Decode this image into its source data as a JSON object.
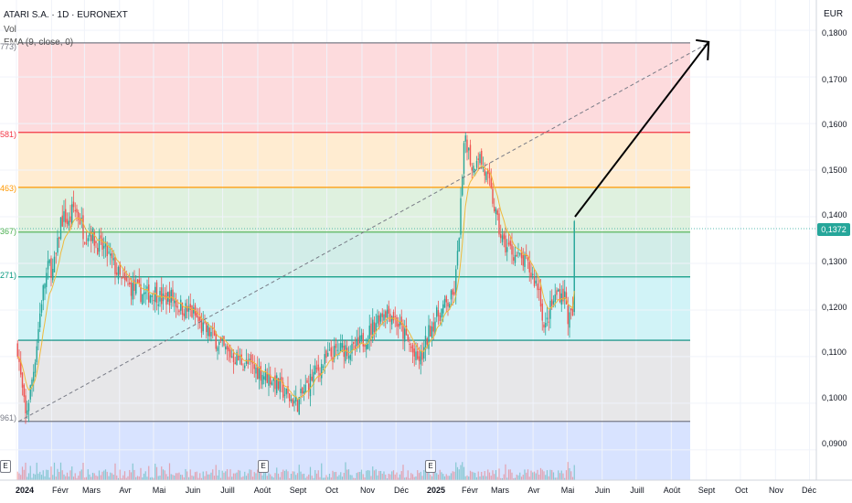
{
  "header": {
    "symbol": "ATARI S.A. · 1D · EURONEXT",
    "vol": "Vol",
    "ema": "EMA (9, close, 0)"
  },
  "axis": {
    "unit": "EUR",
    "last_price_label": "0,1372",
    "y_labels": [
      "0,1800",
      "0,1700",
      "0,1600",
      "0,1500",
      "0,1400",
      "0,1300",
      "0,1200",
      "0,1100",
      "0,1000",
      "0,0900"
    ],
    "x_labels": [
      "2024",
      "Févr",
      "Mars",
      "Avr",
      "Mai",
      "Juin",
      "Juill",
      "Août",
      "Sept",
      "Oct",
      "Nov",
      "Déc",
      "2025",
      "Févr",
      "Mars",
      "Avr",
      "Mai",
      "Juin",
      "Juill",
      "Août",
      "Sept",
      "Oct",
      "Nov",
      "Déc"
    ],
    "earnings_badge": "E"
  },
  "fib_labels": [
    "773)",
    "581)",
    "463)",
    "367)",
    "271)",
    "",
    "961)"
  ],
  "colors": {
    "up": "#26a69a",
    "down": "#ef5350",
    "ema": "#f0b93b",
    "accent": "#26a69a"
  },
  "chart_data": {
    "type": "candlestick",
    "title": "ATARI S.A. · 1D · EURONEXT",
    "ylabel": "EUR",
    "ylim": [
      0.0835,
      0.1865
    ],
    "last_price": 0.1372,
    "fib_levels": [
      0.1773,
      0.1581,
      0.1463,
      0.1367,
      0.1271,
      0.1135,
      0.0961
    ],
    "projection_arrow": {
      "from": [
        "2025-05-08",
        0.14
      ],
      "to": [
        "2025-09-03",
        0.1775
      ]
    },
    "trend_line": {
      "from": [
        "2024-01-03",
        0.0961
      ],
      "to": [
        "2025-09-03",
        0.1773
      ]
    },
    "price_path": [
      [
        "2024-01-02",
        0.112
      ],
      [
        "2024-01-05",
        0.105
      ],
      [
        "2024-01-09",
        0.097
      ],
      [
        "2024-01-12",
        0.101
      ],
      [
        "2024-01-16",
        0.107
      ],
      [
        "2024-01-19",
        0.113
      ],
      [
        "2024-01-23",
        0.122
      ],
      [
        "2024-01-26",
        0.126
      ],
      [
        "2024-01-30",
        0.13
      ],
      [
        "2024-02-02",
        0.128
      ],
      [
        "2024-02-06",
        0.133
      ],
      [
        "2024-02-09",
        0.139
      ],
      [
        "2024-02-13",
        0.14
      ],
      [
        "2024-02-16",
        0.138
      ],
      [
        "2024-02-20",
        0.142
      ],
      [
        "2024-02-23",
        0.141
      ],
      [
        "2024-02-27",
        0.139
      ],
      [
        "2024-03-01",
        0.136
      ],
      [
        "2024-03-06",
        0.137
      ],
      [
        "2024-03-12",
        0.134
      ],
      [
        "2024-03-19",
        0.133
      ],
      [
        "2024-03-26",
        0.13
      ],
      [
        "2024-04-03",
        0.126
      ],
      [
        "2024-04-10",
        0.125
      ],
      [
        "2024-04-17",
        0.124
      ],
      [
        "2024-04-24",
        0.123
      ],
      [
        "2024-05-02",
        0.124
      ],
      [
        "2024-05-09",
        0.122
      ],
      [
        "2024-05-16",
        0.123
      ],
      [
        "2024-05-23",
        0.121
      ],
      [
        "2024-05-30",
        0.12
      ],
      [
        "2024-06-06",
        0.119
      ],
      [
        "2024-06-13",
        0.116
      ],
      [
        "2024-06-20",
        0.115
      ],
      [
        "2024-06-27",
        0.113
      ],
      [
        "2024-07-04",
        0.111
      ],
      [
        "2024-07-11",
        0.11
      ],
      [
        "2024-07-18",
        0.109
      ],
      [
        "2024-07-25",
        0.108
      ],
      [
        "2024-08-01",
        0.107
      ],
      [
        "2024-08-08",
        0.106
      ],
      [
        "2024-08-15",
        0.105
      ],
      [
        "2024-08-22",
        0.103
      ],
      [
        "2024-08-29",
        0.101
      ],
      [
        "2024-09-05",
        0.1
      ],
      [
        "2024-09-12",
        0.103
      ],
      [
        "2024-09-19",
        0.106
      ],
      [
        "2024-09-26",
        0.108
      ],
      [
        "2024-10-03",
        0.11
      ],
      [
        "2024-10-10",
        0.111
      ],
      [
        "2024-10-17",
        0.112
      ],
      [
        "2024-10-24",
        0.111
      ],
      [
        "2024-10-31",
        0.113
      ],
      [
        "2024-11-07",
        0.115
      ],
      [
        "2024-11-14",
        0.118
      ],
      [
        "2024-11-21",
        0.12
      ],
      [
        "2024-11-28",
        0.119
      ],
      [
        "2024-12-05",
        0.116
      ],
      [
        "2024-12-12",
        0.113
      ],
      [
        "2024-12-19",
        0.109
      ],
      [
        "2024-12-24",
        0.11
      ],
      [
        "2024-12-31",
        0.116
      ],
      [
        "2025-01-07",
        0.119
      ],
      [
        "2025-01-14",
        0.121
      ],
      [
        "2025-01-21",
        0.123
      ],
      [
        "2025-01-24",
        0.13
      ],
      [
        "2025-01-28",
        0.146
      ],
      [
        "2025-01-31",
        0.158
      ],
      [
        "2025-02-04",
        0.153
      ],
      [
        "2025-02-07",
        0.15
      ],
      [
        "2025-02-11",
        0.154
      ],
      [
        "2025-02-14",
        0.152
      ],
      [
        "2025-02-18",
        0.149
      ],
      [
        "2025-02-21",
        0.147
      ],
      [
        "2025-02-25",
        0.143
      ],
      [
        "2025-03-01",
        0.138
      ],
      [
        "2025-03-06",
        0.134
      ],
      [
        "2025-03-12",
        0.133
      ],
      [
        "2025-03-19",
        0.131
      ],
      [
        "2025-03-26",
        0.13
      ],
      [
        "2025-04-01",
        0.127
      ],
      [
        "2025-04-07",
        0.124
      ],
      [
        "2025-04-11",
        0.115
      ],
      [
        "2025-04-16",
        0.12
      ],
      [
        "2025-04-23",
        0.124
      ],
      [
        "2025-04-29",
        0.123
      ],
      [
        "2025-05-02",
        0.118
      ],
      [
        "2025-05-06",
        0.119
      ],
      [
        "2025-05-07",
        0.138
      ],
      [
        "2025-05-08",
        0.1372
      ]
    ]
  }
}
